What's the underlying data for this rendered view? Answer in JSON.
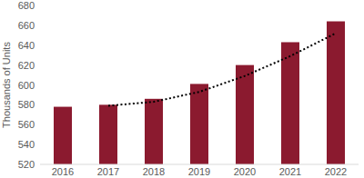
{
  "chart_data": {
    "type": "bar",
    "y_label": "Thousands of Units",
    "categories": [
      "2016",
      "2017",
      "2018",
      "2019",
      "2020",
      "2021",
      "2022"
    ],
    "series": [
      {
        "type": "bar",
        "color": "#8b1a2f",
        "values": [
          578,
          580,
          586,
          601,
          620,
          643,
          664
        ]
      },
      {
        "type": "line",
        "color": "#000000",
        "line_style": "dotted",
        "values": [
          null,
          579,
          583,
          593,
          609,
          629,
          652
        ]
      }
    ],
    "ylim": [
      520,
      680
    ],
    "yticks": [
      520,
      540,
      560,
      580,
      600,
      620,
      640,
      660,
      680
    ],
    "grid": false
  }
}
